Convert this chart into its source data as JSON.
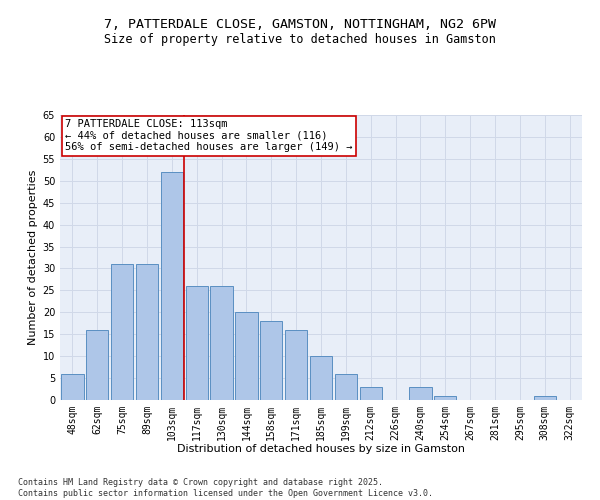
{
  "title": "7, PATTERDALE CLOSE, GAMSTON, NOTTINGHAM, NG2 6PW",
  "subtitle": "Size of property relative to detached houses in Gamston",
  "xlabel": "Distribution of detached houses by size in Gamston",
  "ylabel": "Number of detached properties",
  "categories": [
    "48sqm",
    "62sqm",
    "75sqm",
    "89sqm",
    "103sqm",
    "117sqm",
    "130sqm",
    "144sqm",
    "158sqm",
    "171sqm",
    "185sqm",
    "199sqm",
    "212sqm",
    "226sqm",
    "240sqm",
    "254sqm",
    "267sqm",
    "281sqm",
    "295sqm",
    "308sqm",
    "322sqm"
  ],
  "values": [
    6,
    16,
    31,
    31,
    52,
    26,
    26,
    20,
    18,
    16,
    10,
    6,
    3,
    0,
    3,
    1,
    0,
    0,
    0,
    1,
    0
  ],
  "bar_color": "#aec6e8",
  "bar_edge_color": "#5a8fc2",
  "vline_x_index": 4.5,
  "vline_color": "#cc0000",
  "annotation_text": "7 PATTERDALE CLOSE: 113sqm\n← 44% of detached houses are smaller (116)\n56% of semi-detached houses are larger (149) →",
  "annotation_box_color": "#ffffff",
  "annotation_box_edge_color": "#cc0000",
  "ylim": [
    0,
    65
  ],
  "yticks": [
    0,
    5,
    10,
    15,
    20,
    25,
    30,
    35,
    40,
    45,
    50,
    55,
    60,
    65
  ],
  "grid_color": "#d0d8e8",
  "bg_color": "#e8eef8",
  "footer_text": "Contains HM Land Registry data © Crown copyright and database right 2025.\nContains public sector information licensed under the Open Government Licence v3.0.",
  "title_fontsize": 9.5,
  "subtitle_fontsize": 8.5,
  "xlabel_fontsize": 8,
  "ylabel_fontsize": 8,
  "tick_fontsize": 7,
  "annotation_fontsize": 7.5,
  "footer_fontsize": 6
}
